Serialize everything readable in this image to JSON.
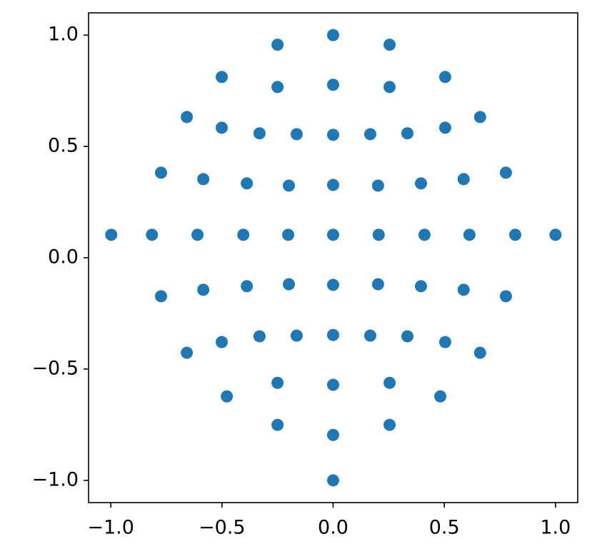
{
  "chart_data": {
    "type": "scatter",
    "color": "#1f77b4",
    "x": [
      0,
      -0.25,
      0.254,
      -0.501,
      0.504,
      0,
      -0.25,
      0.254,
      -0.658,
      0.661,
      -0.501,
      0.504,
      -0.331,
      -0.164,
      0,
      0.167,
      0.334,
      -0.774,
      0.777,
      -0.584,
      0.587,
      -0.388,
      0.395,
      -0.199,
      0,
      0.202,
      -0.998,
      -0.815,
      -0.61,
      -0.404,
      -0.202,
      0,
      0.205,
      0.411,
      0.613,
      0.819,
      1.0,
      -0.199,
      0,
      0.202,
      -0.388,
      0.395,
      -0.584,
      0.587,
      -0.774,
      0.777,
      -0.331,
      -0.164,
      0,
      0.167,
      0.334,
      -0.501,
      0.504,
      -0.658,
      0.661,
      -0.25,
      0.254,
      0,
      -0.478,
      0.482,
      -0.25,
      0.254,
      0,
      0
    ],
    "y": [
      1.0,
      0.957,
      0.957,
      0.812,
      0.812,
      0.777,
      0.767,
      0.767,
      0.632,
      0.632,
      0.584,
      0.584,
      0.559,
      0.555,
      0.552,
      0.555,
      0.559,
      0.382,
      0.382,
      0.353,
      0.353,
      0.334,
      0.334,
      0.324,
      0.327,
      0.324,
      0.103,
      0.103,
      0.103,
      0.103,
      0.103,
      0.103,
      0.103,
      0.103,
      0.103,
      0.103,
      0.103,
      -0.119,
      -0.122,
      -0.119,
      -0.128,
      -0.128,
      -0.144,
      -0.144,
      -0.173,
      -0.173,
      -0.353,
      -0.35,
      -0.347,
      -0.35,
      -0.353,
      -0.379,
      -0.379,
      -0.427,
      -0.427,
      -0.562,
      -0.562,
      -0.571,
      -0.623,
      -0.623,
      -0.751,
      -0.751,
      -0.796,
      -1.0
    ],
    "xlim": [
      -1.1,
      1.1
    ],
    "ylim": [
      -1.1,
      1.1
    ],
    "xticks": [
      {
        "value": -1,
        "label": "−1.0"
      },
      {
        "value": -0.5,
        "label": "−0.5"
      },
      {
        "value": 0,
        "label": "0.0"
      },
      0.5,
      {
        "value": 1,
        "label": "1.0"
      }
    ],
    "yticks": [
      {
        "value": -1,
        "label": "−1.0"
      },
      {
        "value": -0.5,
        "label": "−0.5"
      },
      {
        "value": 0,
        "label": "0.0"
      },
      0.5,
      {
        "value": 1,
        "label": "1.0"
      }
    ]
  }
}
